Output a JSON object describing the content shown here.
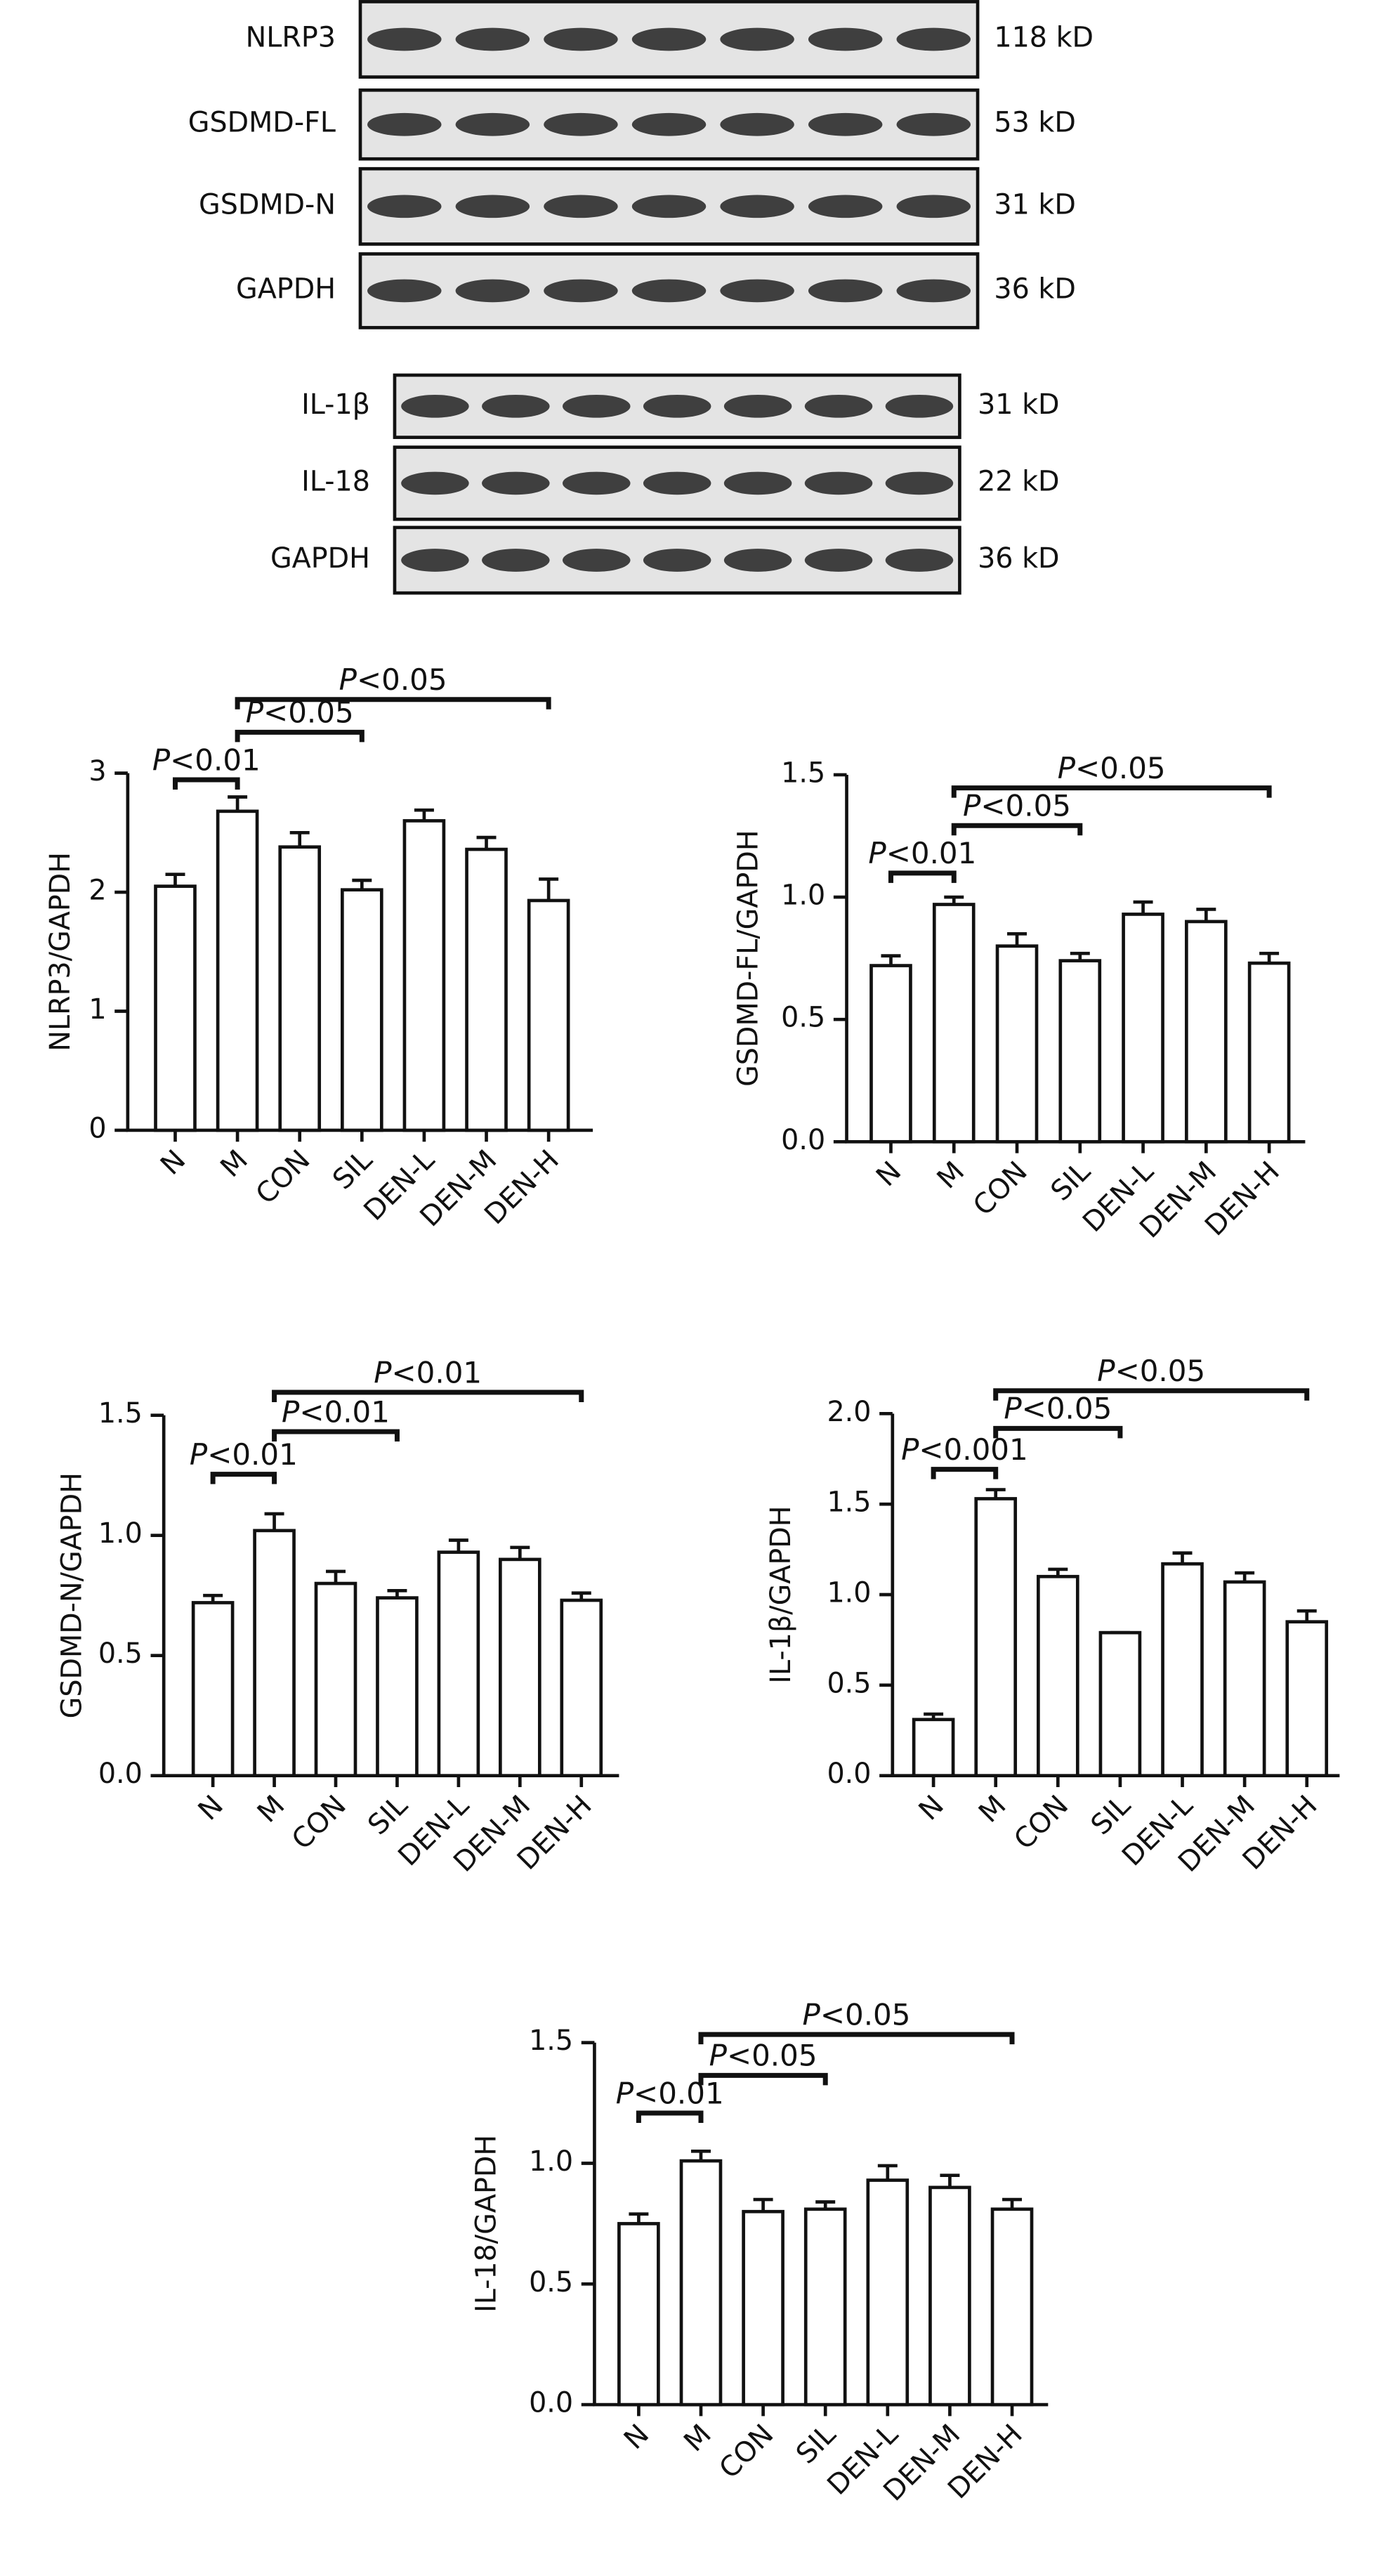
{
  "blots": [
    {
      "rows": [
        {
          "label": "NLRP3",
          "size": "118 kD"
        },
        {
          "label": "GSDMD-FL",
          "size": "53 kD"
        },
        {
          "label": "GSDMD-N",
          "size": "31 kD"
        },
        {
          "label": "GAPDH",
          "size": "36 kD"
        }
      ]
    },
    {
      "rows": [
        {
          "label": "IL-1β",
          "size": "31 kD"
        },
        {
          "label": "IL-18",
          "size": "22 kD"
        },
        {
          "label": "GAPDH",
          "size": "36 kD"
        }
      ]
    }
  ],
  "chart_data": [
    {
      "type": "bar",
      "ylabel": "NLRP3/GAPDH",
      "categories": [
        "N",
        "M",
        "CON",
        "SIL",
        "DEN-L",
        "DEN-M",
        "DEN-H"
      ],
      "values": [
        2.05,
        2.68,
        2.38,
        2.02,
        2.6,
        2.36,
        1.93
      ],
      "errors": [
        0.1,
        0.12,
        0.12,
        0.08,
        0.09,
        0.1,
        0.18
      ],
      "ylim": [
        0,
        3
      ],
      "yticks": [
        0,
        1,
        2,
        3
      ],
      "annotations": [
        {
          "text": "P<0.01",
          "between": [
            "N",
            "M"
          ]
        },
        {
          "text": "P<0.05",
          "between": [
            "M",
            "SIL"
          ]
        },
        {
          "text": "P<0.05",
          "between": [
            "M",
            "DEN-H"
          ]
        }
      ]
    },
    {
      "type": "bar",
      "ylabel": "GSDMD-FL/GAPDH",
      "categories": [
        "N",
        "M",
        "CON",
        "SIL",
        "DEN-L",
        "DEN-M",
        "DEN-H"
      ],
      "values": [
        0.72,
        0.97,
        0.8,
        0.74,
        0.93,
        0.9,
        0.73
      ],
      "errors": [
        0.04,
        0.03,
        0.05,
        0.03,
        0.05,
        0.05,
        0.04
      ],
      "ylim": [
        0,
        1.5
      ],
      "yticks": [
        {
          "value": 0,
          "label": "0.0"
        },
        0.5,
        {
          "value": 1,
          "label": "1.0"
        },
        1.5
      ],
      "annotations": [
        {
          "text": "P<0.01",
          "between": [
            "N",
            "M"
          ]
        },
        {
          "text": "P<0.05",
          "between": [
            "M",
            "SIL"
          ]
        },
        {
          "text": "P<0.05",
          "between": [
            "M",
            "DEN-H"
          ]
        }
      ]
    },
    {
      "type": "bar",
      "ylabel": "GSDMD-N/GAPDH",
      "categories": [
        "N",
        "M",
        "CON",
        "SIL",
        "DEN-L",
        "DEN-M",
        "DEN-H"
      ],
      "values": [
        0.72,
        1.02,
        0.8,
        0.74,
        0.93,
        0.9,
        0.73
      ],
      "errors": [
        0.03,
        0.07,
        0.05,
        0.03,
        0.05,
        0.05,
        0.03
      ],
      "ylim": [
        0,
        1.5
      ],
      "yticks": [
        {
          "value": 0,
          "label": "0.0"
        },
        0.5,
        {
          "value": 1,
          "label": "1.0"
        },
        1.5
      ],
      "annotations": [
        {
          "text": "P<0.01",
          "between": [
            "N",
            "M"
          ]
        },
        {
          "text": "P<0.01",
          "between": [
            "M",
            "SIL"
          ]
        },
        {
          "text": "P<0.01",
          "between": [
            "M",
            "DEN-H"
          ]
        }
      ]
    },
    {
      "type": "bar",
      "ylabel": "IL-1β/GAPDH",
      "categories": [
        "N",
        "M",
        "CON",
        "SIL",
        "DEN-L",
        "DEN-M",
        "DEN-H"
      ],
      "values": [
        0.31,
        1.53,
        1.1,
        0.79,
        1.17,
        1.07,
        0.85
      ],
      "errors": [
        0.03,
        0.05,
        0.04,
        0,
        0.06,
        0.05,
        0.06
      ],
      "ylim": [
        0,
        2
      ],
      "yticks": [
        {
          "value": 0,
          "label": "0.0"
        },
        0.5,
        {
          "value": 1,
          "label": "1.0"
        },
        1.5,
        {
          "value": 2,
          "label": "2.0"
        }
      ],
      "annotations": [
        {
          "text": "P<0.001",
          "between": [
            "N",
            "M"
          ]
        },
        {
          "text": "P<0.05",
          "between": [
            "M",
            "SIL"
          ]
        },
        {
          "text": "P<0.05",
          "between": [
            "M",
            "DEN-H"
          ]
        }
      ]
    },
    {
      "type": "bar",
      "ylabel": "IL-18/GAPDH",
      "categories": [
        "N",
        "M",
        "CON",
        "SIL",
        "DEN-L",
        "DEN-M",
        "DEN-H"
      ],
      "values": [
        0.75,
        1.01,
        0.8,
        0.81,
        0.93,
        0.9,
        0.81
      ],
      "errors": [
        0.04,
        0.04,
        0.05,
        0.03,
        0.06,
        0.05,
        0.04
      ],
      "ylim": [
        0,
        1.5
      ],
      "yticks": [
        {
          "value": 0,
          "label": "0.0"
        },
        0.5,
        {
          "value": 1,
          "label": "1.0"
        },
        1.5
      ],
      "annotations": [
        {
          "text": "P<0.01",
          "between": [
            "N",
            "M"
          ]
        },
        {
          "text": "P<0.05",
          "between": [
            "M",
            "SIL"
          ]
        },
        {
          "text": "P<0.05",
          "between": [
            "M",
            "DEN-H"
          ]
        }
      ]
    }
  ]
}
